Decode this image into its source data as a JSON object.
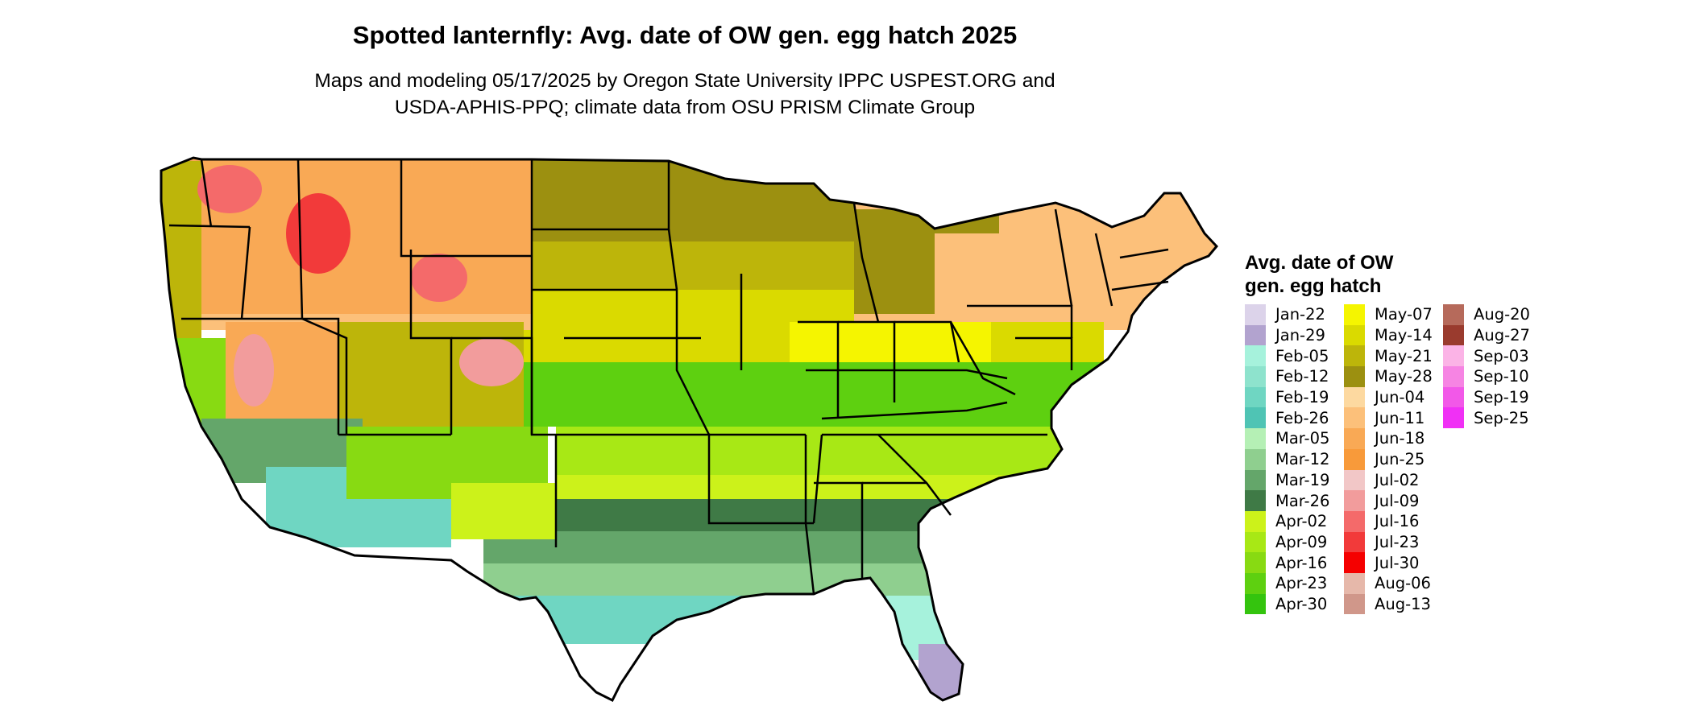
{
  "title": "Spotted lanternfly: Avg. date of OW gen. egg hatch 2025",
  "subtitle_lines": [
    "Maps and modeling 05/17/2025 by Oregon State University IPPC USPEST.ORG and",
    "USDA-APHIS-PPQ; climate data from OSU PRISM Climate Group"
  ],
  "legend": {
    "title_lines": [
      "Avg. date of OW",
      "gen. egg hatch"
    ],
    "columns": [
      [
        {
          "label": "Jan-22",
          "color": "#dcd3ea"
        },
        {
          "label": "Jan-29",
          "color": "#b2a3cf"
        },
        {
          "label": "Feb-05",
          "color": "#a6f2dc"
        },
        {
          "label": "Feb-12",
          "color": "#8ee3cd"
        },
        {
          "label": "Feb-19",
          "color": "#6fd6c2"
        },
        {
          "label": "Feb-26",
          "color": "#4fc4b4"
        },
        {
          "label": "Mar-05",
          "color": "#b5f0b5"
        },
        {
          "label": "Mar-12",
          "color": "#8fcf8f"
        },
        {
          "label": "Mar-19",
          "color": "#64a66a"
        },
        {
          "label": "Mar-26",
          "color": "#3f7a46"
        },
        {
          "label": "Apr-02",
          "color": "#ccf21a"
        },
        {
          "label": "Apr-09",
          "color": "#a8e815"
        },
        {
          "label": "Apr-16",
          "color": "#88da12"
        },
        {
          "label": "Apr-23",
          "color": "#5ed010"
        },
        {
          "label": "Apr-30",
          "color": "#34c40e"
        }
      ],
      [
        {
          "label": "May-07",
          "color": "#f5f500"
        },
        {
          "label": "May-14",
          "color": "#dada00"
        },
        {
          "label": "May-21",
          "color": "#bdb50a"
        },
        {
          "label": "May-28",
          "color": "#9c9010"
        },
        {
          "label": "Jun-04",
          "color": "#fdd9a0"
        },
        {
          "label": "Jun-11",
          "color": "#fcc07a"
        },
        {
          "label": "Jun-18",
          "color": "#f9a955"
        },
        {
          "label": "Jun-25",
          "color": "#f89a3a"
        },
        {
          "label": "Jul-02",
          "color": "#f2c7c7"
        },
        {
          "label": "Jul-09",
          "color": "#f29c9c"
        },
        {
          "label": "Jul-16",
          "color": "#f46a6a"
        },
        {
          "label": "Jul-23",
          "color": "#f23a3a"
        },
        {
          "label": "Jul-30",
          "color": "#f50000"
        },
        {
          "label": "Aug-06",
          "color": "#e6b8aa"
        },
        {
          "label": "Aug-13",
          "color": "#d0978a"
        }
      ],
      [
        {
          "label": "Aug-20",
          "color": "#b66a5b"
        },
        {
          "label": "Aug-27",
          "color": "#9a3b2e"
        },
        {
          "label": "Sep-03",
          "color": "#fbb3e6"
        },
        {
          "label": "Sep-10",
          "color": "#f684e3"
        },
        {
          "label": "Sep-19",
          "color": "#f258e8"
        },
        {
          "label": "Sep-25",
          "color": "#f030f5"
        }
      ]
    ]
  }
}
